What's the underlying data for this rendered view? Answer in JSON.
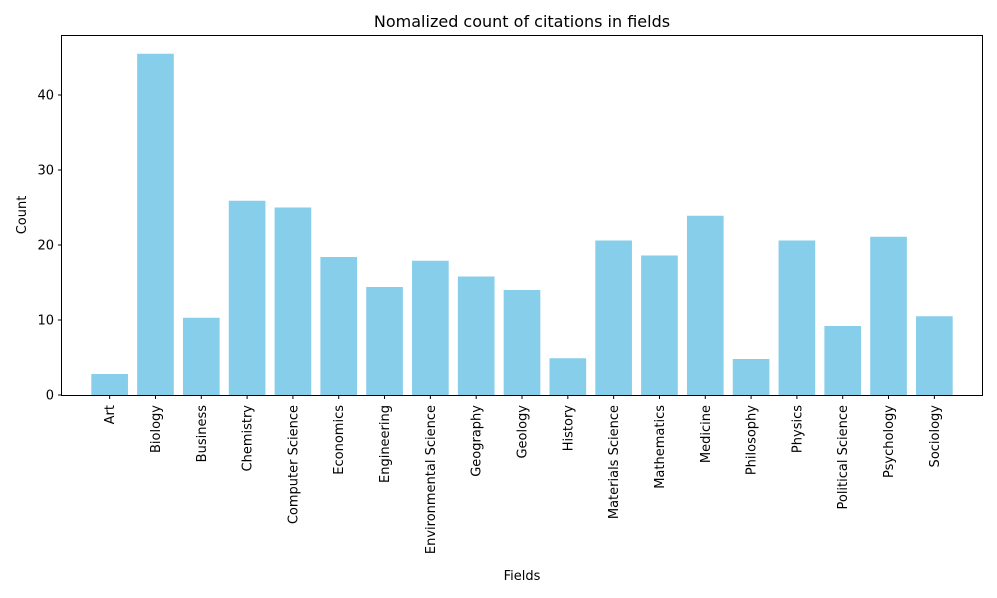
{
  "colors": {
    "bar": "#87ceeb",
    "axis": "#000000",
    "background": "#ffffff"
  },
  "chart_data": {
    "type": "bar",
    "title": "Nomalized count of citations in fields",
    "xlabel": "Fields",
    "ylabel": "Count",
    "ylim": [
      0,
      48
    ],
    "yticks": [
      0,
      10,
      20,
      30,
      40
    ],
    "categories": [
      "Art",
      "Biology",
      "Business",
      "Chemistry",
      "Computer Science",
      "Economics",
      "Engineering",
      "Environmental Science",
      "Geography",
      "Geology",
      "History",
      "Materials Science",
      "Mathematics",
      "Medicine",
      "Philosophy",
      "Physics",
      "Political Science",
      "Psychology",
      "Sociology"
    ],
    "values": [
      2.8,
      45.5,
      10.3,
      25.9,
      25.0,
      18.4,
      14.4,
      17.9,
      15.8,
      14.0,
      4.9,
      20.6,
      18.6,
      23.9,
      4.8,
      20.6,
      9.2,
      21.1,
      10.5
    ]
  }
}
